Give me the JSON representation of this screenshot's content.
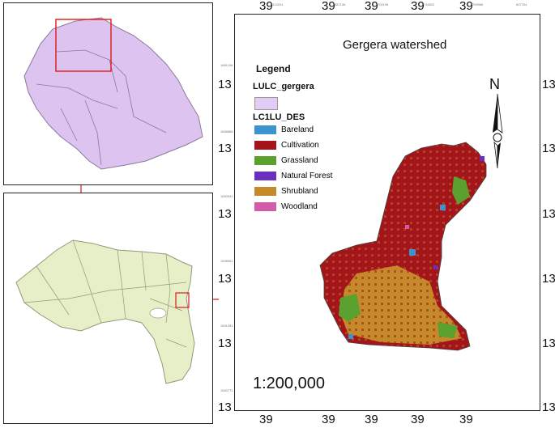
{
  "map": {
    "title": "Gergera watershed",
    "scale": "1:200,000",
    "north_label": "N",
    "legend": {
      "heading": "Legend",
      "layer1_title": "LULC_gergera",
      "layer1_color": "#e2cdf5",
      "layer2_title": "LC1LU_DES",
      "classes": [
        {
          "label": "Bareland",
          "color": "#3b93cf"
        },
        {
          "label": "Cultivation",
          "color": "#a3141b"
        },
        {
          "label": "Grassland",
          "color": "#5ba12f"
        },
        {
          "label": "Natural Forest",
          "color": "#6b2fc0"
        },
        {
          "label": "Shrubland",
          "color": "#c48a2a"
        },
        {
          "label": "Woodland",
          "color": "#d25ca8"
        }
      ]
    },
    "ticks": {
      "x_major": [
        "39",
        "39",
        "39",
        "39",
        "39"
      ],
      "y_major": [
        "13",
        "13",
        "13",
        "13",
        "13",
        "13"
      ],
      "x_minor": [
        "413224",
        "487106",
        "700196",
        "746822",
        "769966",
        "837764"
      ],
      "y_minor": [
        "1681106",
        "1668886",
        "1650942",
        "1598961",
        "1591281",
        "1540771"
      ]
    }
  },
  "insets": {
    "ethiopia_color": "#dcc3f0",
    "tigray_color": "#e7efc8",
    "connector_color": "#e01818"
  }
}
